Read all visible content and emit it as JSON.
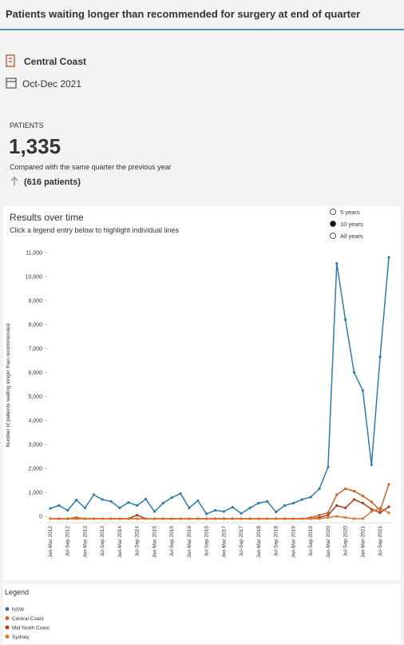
{
  "header": {
    "title": "Patients waiting longer than recommended for surgery at end of quarter",
    "location": "Central Coast",
    "period": "Oct-Dec 2021"
  },
  "kpi": {
    "label": "PATIENTS",
    "value": "1,335",
    "comparison": "Compared with the same quarter the previous year",
    "change": "(616 patients)"
  },
  "range_options": {
    "options": [
      "5 years",
      "10 years",
      "All years"
    ],
    "selected_index": 1
  },
  "chart_data": {
    "type": "line",
    "title": "Results over time",
    "subtitle": "Click a legend entry below to highlight individual lines",
    "ylabel": "Number of patients waiting longer than recommended",
    "legend_title": "Legend",
    "categories": [
      "Jan-Mar 2012",
      null,
      "Jul-Sep 2012",
      null,
      "Jan-Mar 2013",
      null,
      "Jul-Sep 2013",
      null,
      "Jan-Mar 2014",
      null,
      "Jul-Sep 2014",
      null,
      "Jan-Mar 2015",
      null,
      "Jul-Sep 2015",
      null,
      "Jan-Mar 2016",
      null,
      "Jul-Sep 2016",
      null,
      "Jan-Mar 2017",
      null,
      "Jul-Sep 2017",
      null,
      "Jan-Mar 2018",
      null,
      "Jul-Sep 2018",
      null,
      "Jan-Mar 2019",
      null,
      "Jul-Sep 2019",
      null,
      "Jan-Mar 2020",
      null,
      "Jul-Sep 2020",
      null,
      "Jan-Mar 2021",
      null,
      "Jul-Sep 2021",
      null
    ],
    "series": [
      {
        "name": "NSW",
        "color": "#2f7ca8",
        "values": [
          330,
          450,
          250,
          680,
          350,
          900,
          700,
          620,
          350,
          580,
          450,
          720,
          200,
          550,
          780,
          950,
          350,
          650,
          100,
          250,
          200,
          380,
          120,
          350,
          550,
          620,
          180,
          450,
          550,
          700,
          800,
          1150,
          2050,
          10550,
          8200,
          6000,
          5250,
          2150,
          6650,
          10800
        ]
      },
      {
        "name": "Central Coast",
        "color": "#c8642c",
        "values": [
          -100,
          -100,
          -100,
          -50,
          -100,
          -100,
          -100,
          -100,
          -100,
          -100,
          -100,
          -100,
          -100,
          -100,
          -100,
          -100,
          -100,
          -100,
          -100,
          -100,
          -100,
          -100,
          -100,
          -100,
          -100,
          -100,
          -100,
          -100,
          -100,
          -100,
          -50,
          50,
          150,
          900,
          1150,
          1050,
          850,
          600,
          250,
          1335
        ]
      },
      {
        "name": "Mid North Coast",
        "color": "#9e4320",
        "values": [
          -100,
          -100,
          -100,
          -100,
          -100,
          -100,
          -100,
          -100,
          -100,
          -100,
          50,
          -100,
          -100,
          -100,
          -100,
          -100,
          -100,
          -100,
          -100,
          -100,
          -100,
          -100,
          -100,
          -100,
          -100,
          -100,
          -100,
          -100,
          -100,
          -100,
          -100,
          -50,
          50,
          450,
          350,
          700,
          550,
          300,
          150,
          400
        ]
      },
      {
        "name": "Sydney",
        "color": "#d9752f",
        "values": [
          -100,
          -100,
          -100,
          -100,
          -100,
          -100,
          -100,
          -100,
          -100,
          -100,
          -100,
          -100,
          -100,
          -100,
          -100,
          -100,
          -100,
          -100,
          -100,
          -100,
          -100,
          -100,
          -100,
          -100,
          -100,
          -100,
          -100,
          -100,
          -100,
          -100,
          -100,
          -100,
          -50,
          0,
          -50,
          -100,
          -100,
          200,
          350,
          150
        ]
      }
    ],
    "ylim": [
      -200,
      11200
    ],
    "yticks": [
      0,
      {
        "value": 1000,
        "label": "1,000"
      },
      {
        "value": 2000,
        "label": "2,000"
      },
      {
        "value": 3000,
        "label": "3,000"
      },
      {
        "value": 4000,
        "label": "4,000"
      },
      {
        "value": 5000,
        "label": "5,000"
      },
      {
        "value": 6000,
        "label": "6,000"
      },
      {
        "value": 7000,
        "label": "7,000"
      },
      {
        "value": 8000,
        "label": "8,000"
      },
      {
        "value": 9000,
        "label": "9,000"
      },
      {
        "value": 10000,
        "label": "10,000"
      },
      {
        "value": 11000,
        "label": "11,000"
      }
    ]
  }
}
